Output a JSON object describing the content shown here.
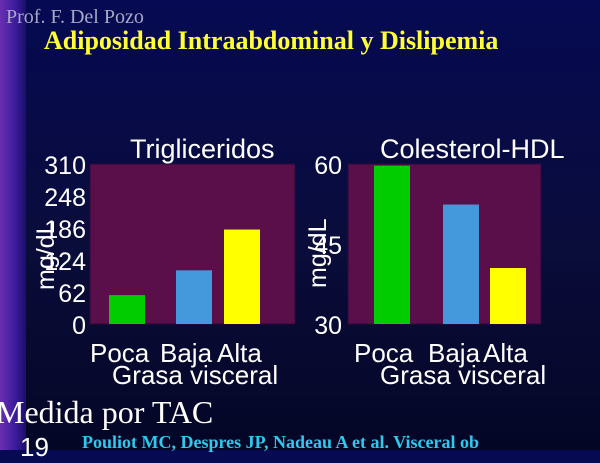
{
  "author": "Prof. F. Del  Pozo",
  "title": "Adiposidad Intraabdominal y Dislipemia",
  "footer": {
    "measure": "Medida por TAC",
    "page": "19",
    "reference": "Pouliot MC, Despres JP, Nadeau A et al.  Visceral ob"
  },
  "chart_data": [
    {
      "type": "bar",
      "title": "Trigliceridos",
      "xlabel": "Grasa visceral",
      "ylabel": "mg/dL",
      "categories": [
        "Poca",
        "Baja",
        "Alta"
      ],
      "values": [
        56,
        104,
        183
      ],
      "ylim": [
        0,
        310
      ],
      "yticks": [
        "0",
        "62",
        "124",
        "186",
        "248",
        "310"
      ],
      "colors": [
        "#00cc00",
        "#4499dd",
        "#ffff00"
      ],
      "grid": false,
      "background": "#5a0f4a"
    },
    {
      "type": "bar",
      "title": "Colesterol-HDL",
      "xlabel": "Grasa visceral",
      "ylabel": "mg/dL",
      "categories": [
        "Poca",
        "Baja",
        "Alta"
      ],
      "values": [
        59.7,
        52.4,
        40.5
      ],
      "ylim": [
        30,
        60
      ],
      "yticks": [
        "30",
        "45",
        "60"
      ],
      "colors": [
        "#00cc00",
        "#4499dd",
        "#ffff00"
      ],
      "grid": false,
      "background": "#5a0f4a"
    }
  ]
}
